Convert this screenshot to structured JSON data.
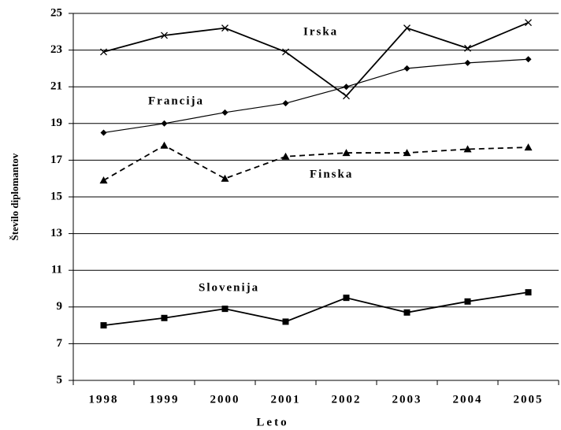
{
  "chart_data": {
    "type": "line",
    "xlabel": "Leto",
    "ylabel": "Število diplomantov",
    "categories": [
      "1998",
      "1999",
      "2000",
      "2001",
      "2002",
      "2003",
      "2004",
      "2005"
    ],
    "series": [
      {
        "name": "Irska",
        "color": "#000000",
        "marker": "x",
        "dashed": false,
        "values": [
          22.9,
          23.8,
          24.2,
          22.9,
          20.5,
          24.2,
          23.1,
          24.5
        ]
      },
      {
        "name": "Francija",
        "color": "#000000",
        "marker": "diamond",
        "dashed": false,
        "values": [
          18.5,
          19.0,
          19.6,
          20.1,
          21.0,
          22.0,
          22.3,
          22.5
        ]
      },
      {
        "name": "Finska",
        "color": "#000000",
        "marker": "triangle",
        "dashed": true,
        "values": [
          15.9,
          17.8,
          16.0,
          17.2,
          17.4,
          17.4,
          17.6,
          17.7
        ]
      },
      {
        "name": "Slovenija",
        "color": "#000000",
        "marker": "square",
        "dashed": false,
        "values": [
          8.0,
          8.4,
          8.9,
          8.2,
          9.5,
          8.7,
          9.3,
          9.8
        ]
      }
    ],
    "ylim": [
      5,
      25
    ],
    "yticks": [
      5,
      7,
      9,
      11,
      13,
      15,
      17,
      19,
      21,
      23,
      25
    ],
    "grid": true
  }
}
